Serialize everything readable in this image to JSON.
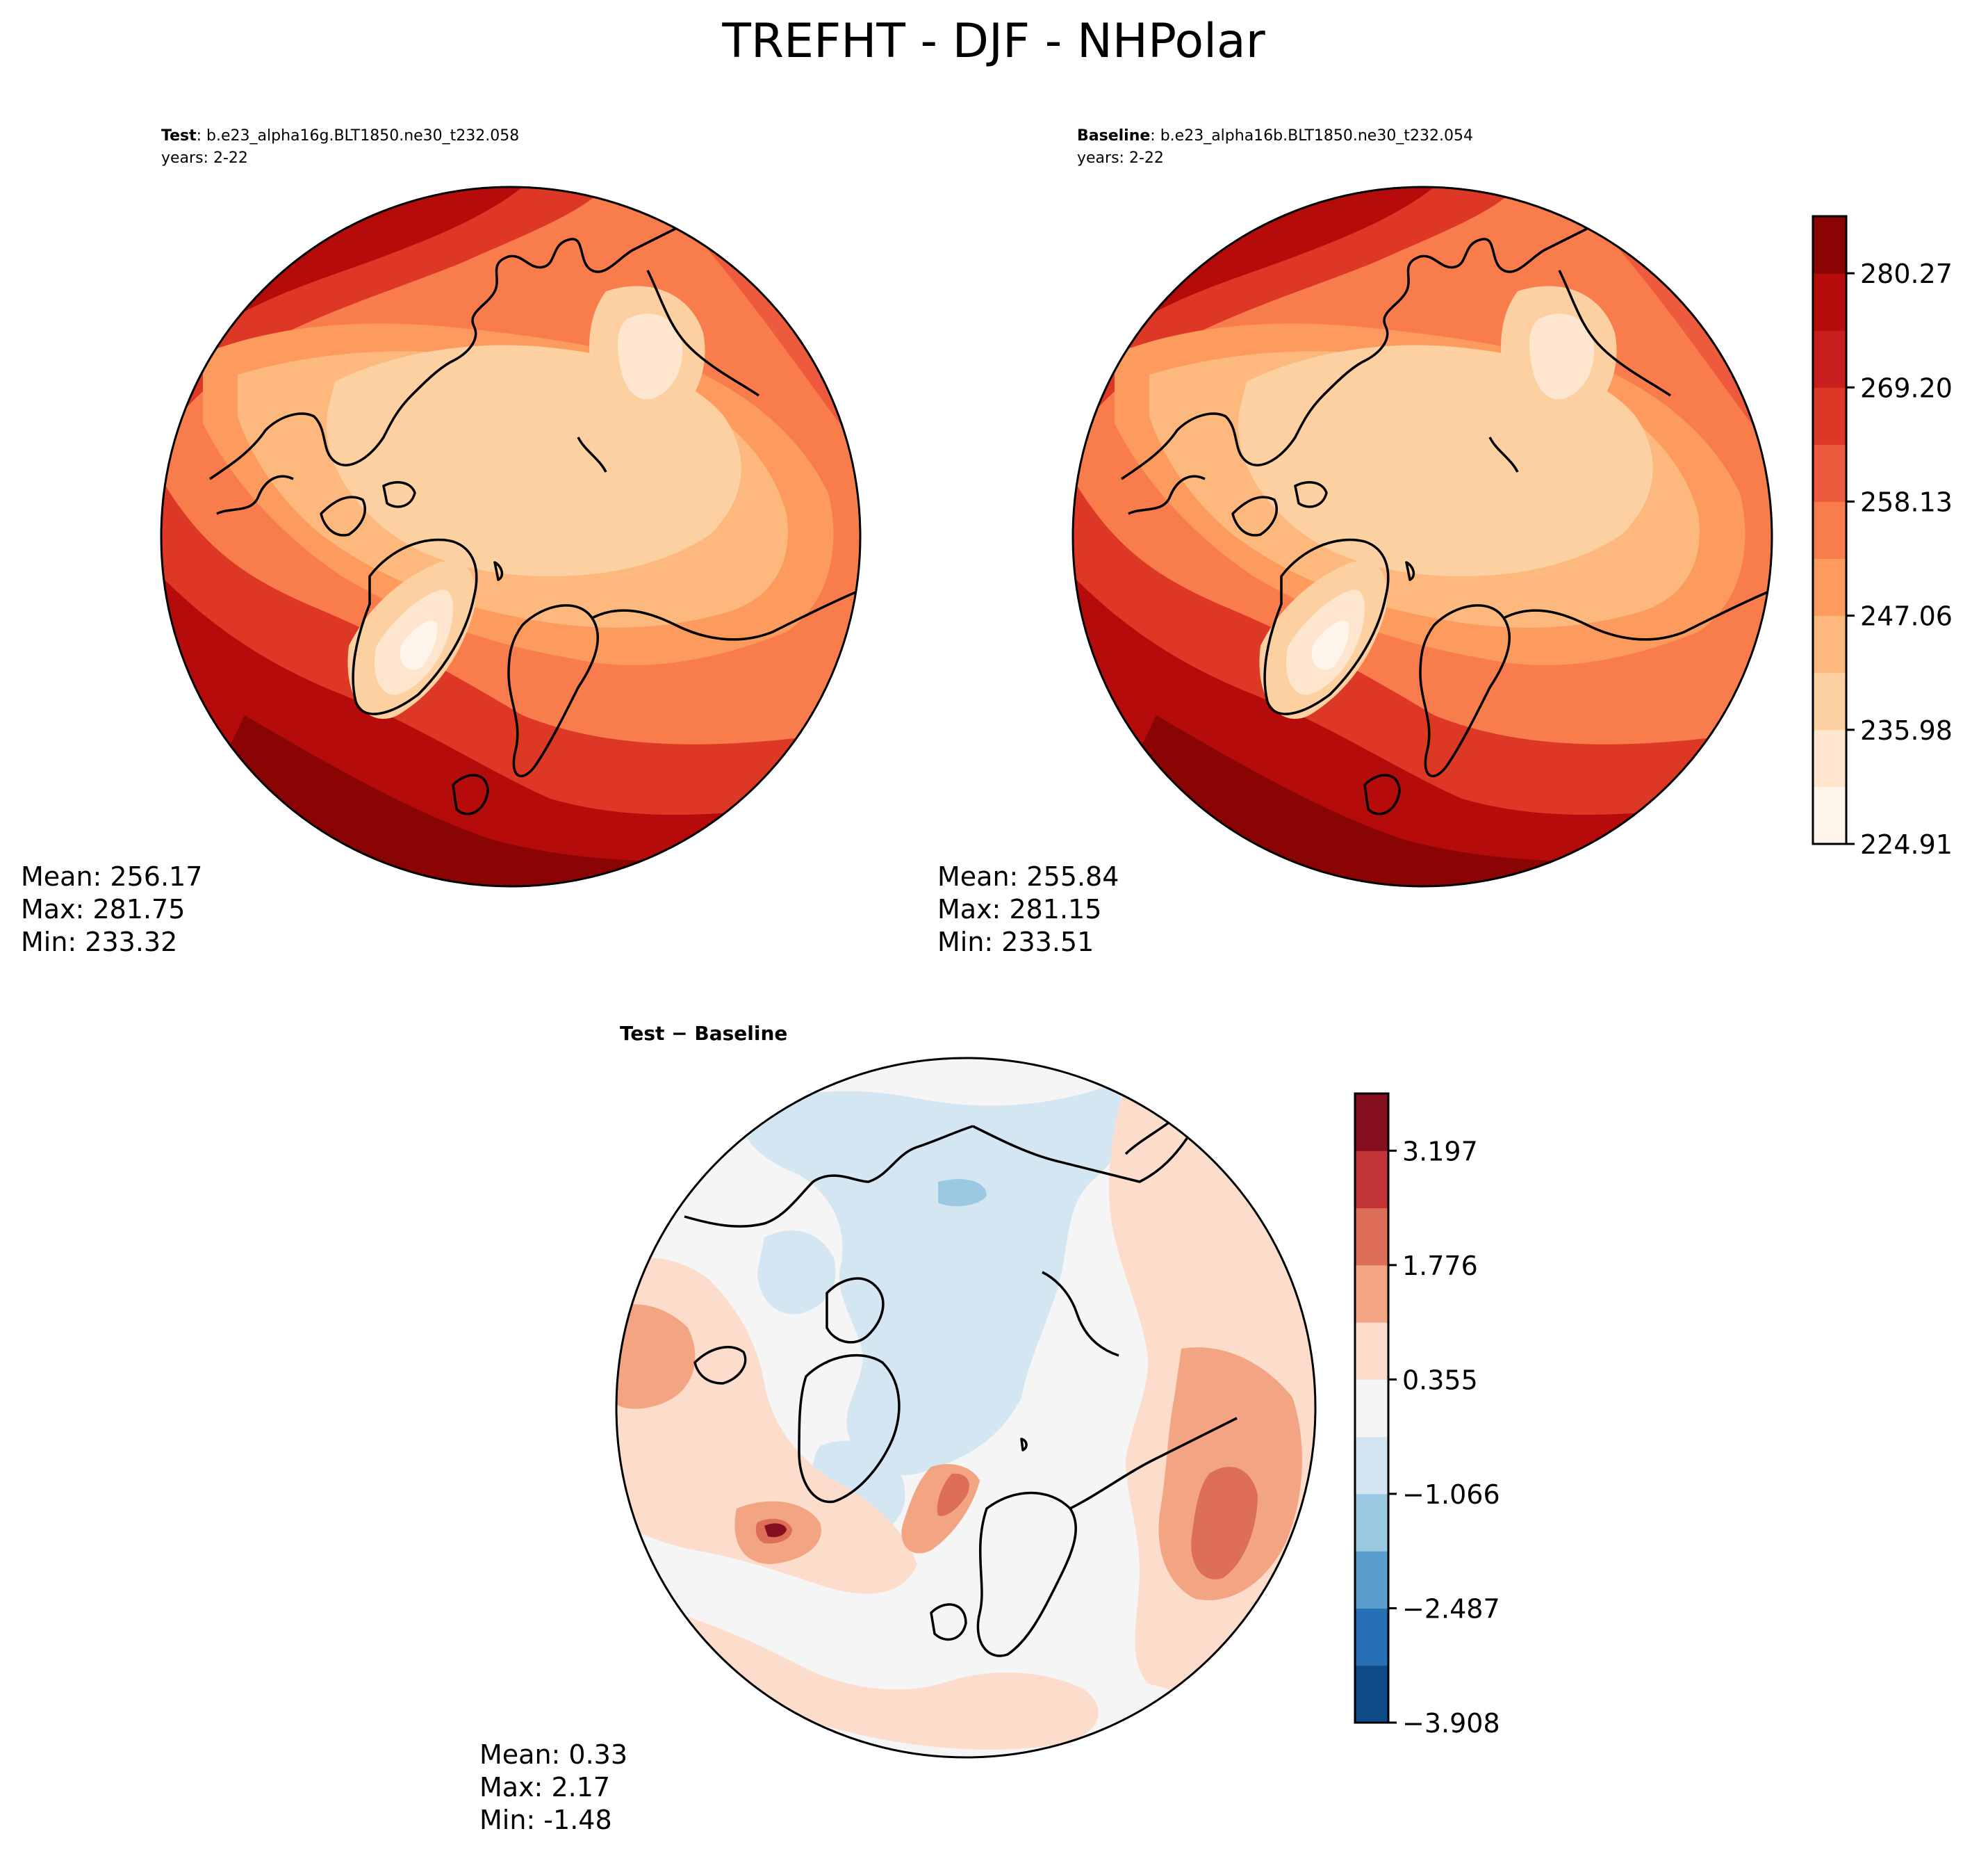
{
  "figure": {
    "title": "TREFHT - DJF - NHPolar"
  },
  "panels": {
    "test": {
      "label_bold": "Test",
      "label_rest": ": b.e23_alpha16g.BLT1850.ne30_t232.058",
      "years": "years: 2-22",
      "stats": {
        "mean": "Mean: 256.17",
        "max": "Max: 281.75",
        "min": "Min: 233.32"
      }
    },
    "baseline": {
      "label_bold": "Baseline",
      "label_rest": ": b.e23_alpha16b.BLT1850.ne30_t232.054",
      "years": "years: 2-22",
      "stats": {
        "mean": "Mean: 255.84",
        "max": "Max: 281.15",
        "min": "Min: 233.51"
      }
    },
    "diff": {
      "label_bold": "Test − Baseline",
      "stats": {
        "mean": "Mean:  0.33",
        "max": "Max:  2.17",
        "min": "Min: -1.48"
      }
    }
  },
  "colorbars": {
    "temperature": {
      "tick_labels": [
        "224.91",
        "235.98",
        "247.06",
        "258.13",
        "269.20",
        "280.27"
      ],
      "colors": [
        "#fff5eb",
        "#fee6ce",
        "#fdd0a2",
        "#fdb97d",
        "#fd9a5d",
        "#f97c4d",
        "#ee5a3e",
        "#dd3826",
        "#c91e1d",
        "#b50b0b",
        "#8a0404"
      ]
    },
    "difference": {
      "tick_labels": [
        "−3.908",
        "−2.487",
        "−1.066",
        "0.355",
        "1.776",
        "3.197"
      ],
      "colors": [
        "#0d4a88",
        "#2870b5",
        "#5a9ecd",
        "#9bc9e2",
        "#d3e6f2",
        "#f5f5f5",
        "#fcdccb",
        "#f3a583",
        "#dd6e58",
        "#c23437",
        "#84101f"
      ]
    }
  }
}
